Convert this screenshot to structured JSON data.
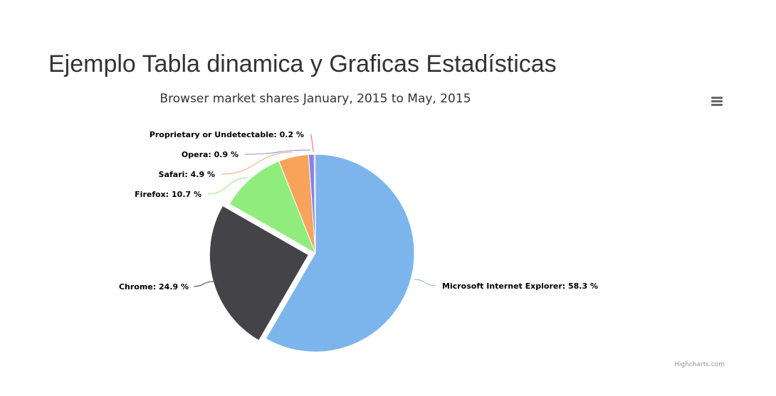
{
  "page": {
    "heading": "Ejemplo Tabla dinamica y Graficas Estadísticas"
  },
  "chart_data": {
    "type": "pie",
    "title": "Browser market shares January, 2015 to May, 2015",
    "value_suffix": " %",
    "slices": [
      {
        "name": "Microsoft Internet Explorer",
        "value": 58.3,
        "label": "Microsoft Internet Explorer: 58.3 %",
        "color": "#7cb5ec",
        "sliced": false
      },
      {
        "name": "Chrome",
        "value": 24.9,
        "label": "Chrome: 24.9 %",
        "color": "#434348",
        "sliced": true
      },
      {
        "name": "Firefox",
        "value": 10.7,
        "label": "Firefox: 10.7 %",
        "color": "#90ed7d",
        "sliced": false
      },
      {
        "name": "Safari",
        "value": 4.9,
        "label": "Safari: 4.9 %",
        "color": "#f7a35c",
        "sliced": false
      },
      {
        "name": "Opera",
        "value": 0.9,
        "label": "Opera: 0.9 %",
        "color": "#8085e9",
        "sliced": false
      },
      {
        "name": "Proprietary or Undetectable",
        "value": 0.2,
        "label": "Proprietary or Undetectable: 0.2 %",
        "color": "#f15c80",
        "sliced": false
      }
    ]
  },
  "toolbar": {
    "menu_icon": "hamburger-menu-icon"
  },
  "credits": {
    "text": "Highcharts.com"
  }
}
